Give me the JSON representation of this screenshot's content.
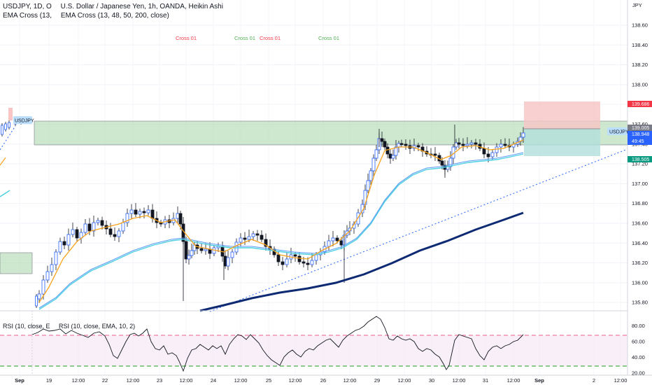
{
  "header": {
    "symbol": "USDJPY, 1D, O",
    "description": "U.S. Dollar / Japanese Yen, 1h, OANDA, Heikin Ashi",
    "ema_short": "EMA Cross (13,",
    "ema_full": "EMA Cross (13, 48, 50, 200, close)",
    "rsi_label": "RSI (10, close, EMA, 10, 2)",
    "rsi_short": "RSI (10, close, E"
  },
  "colors": {
    "bull": "#2962ff",
    "bear": "#131722",
    "ema13": "#f7a21b",
    "ema48": "#5b9cf6",
    "ema50": "#4dd0e1",
    "ema200": "#0d2a73",
    "zone": "#a5d6a7",
    "stop": "#f8c4c4",
    "target": "#b2dfdb",
    "rsi": "#131722",
    "upper": "#f48fb1",
    "lower": "#66bb6a"
  },
  "chart_data": {
    "type": "candlestick",
    "yaxis": {
      "unit": "JPY",
      "ticks": [
        135.8,
        136.0,
        136.2,
        136.4,
        136.6,
        136.8,
        137.0,
        137.2,
        137.4,
        137.6,
        137.8,
        138.0,
        138.2,
        138.4,
        138.6,
        139.2,
        139.4,
        139.6,
        140.0,
        140.2,
        140.4,
        140.6,
        140.8,
        141.0,
        141.2
      ]
    },
    "xaxis": {
      "ticks": [
        "Sep",
        "19",
        "12:00",
        "22",
        "12:00",
        "23",
        "12:00",
        "24",
        "12:00",
        "25",
        "12:00",
        "26",
        "12:00",
        "29",
        "12:00",
        "30",
        "12:00",
        "31",
        "12:00",
        "Sep",
        "2",
        "12:00"
      ]
    },
    "price_labels": [
      {
        "text": "139.686",
        "color": "#f23645"
      },
      {
        "text": "139.005",
        "color": "#787b86"
      },
      {
        "text": "138.948",
        "sub": "49:45",
        "color": "#2962ff"
      },
      {
        "text": "138.505",
        "color": "#089981"
      }
    ],
    "symbol_tags": [
      "USDJPY",
      "USDJPY"
    ],
    "annotations": [
      {
        "text": "Cross 01",
        "color": "#f23645"
      },
      {
        "text": "Cross 01",
        "color": "#4caf50"
      },
      {
        "text": "Cross 01",
        "color": "#f23645"
      },
      {
        "text": "Cross 01",
        "color": "#4caf50"
      }
    ],
    "resistance_zone": [
      138.64,
      139.18
    ],
    "range": [
      135.8,
      141.3
    ],
    "rsi": {
      "ticks": [
        80.0,
        60.0,
        40.0,
        20.0
      ],
      "upper": 70,
      "lower": 30
    },
    "ema_series": [
      "EMA 13",
      "EMA 48",
      "EMA 50",
      "EMA 200"
    ]
  }
}
